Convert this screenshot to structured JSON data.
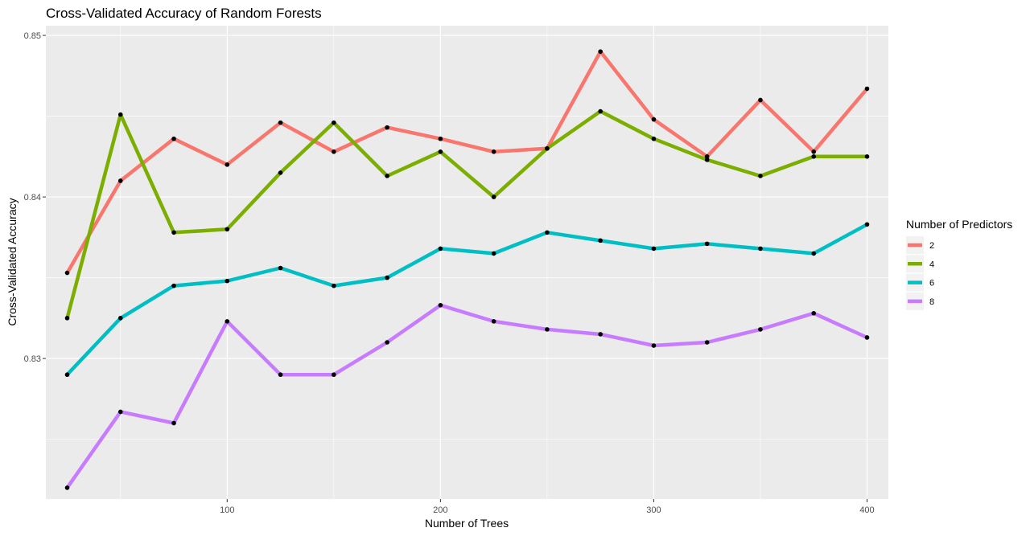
{
  "chart_data": {
    "type": "line",
    "title": "Cross-Validated Accuracy of Random Forests",
    "xlabel": "Number of Trees",
    "ylabel": "Cross-Validated Accuracy",
    "xlim": [
      15,
      410
    ],
    "ylim": [
      0.8213,
      0.8506
    ],
    "x_ticks": [
      100,
      200,
      300,
      400
    ],
    "y_ticks": [
      0.83,
      0.84,
      0.85
    ],
    "x_tick_labels": [
      "100",
      "200",
      "300",
      "400"
    ],
    "y_tick_labels": [
      "0.83",
      "0.84",
      "0.85"
    ],
    "x": [
      25,
      50,
      75,
      100,
      125,
      150,
      175,
      200,
      225,
      250,
      275,
      300,
      325,
      350,
      375,
      400
    ],
    "grid": true,
    "legend": {
      "title": "Number of Predictors",
      "position": "right"
    },
    "series": [
      {
        "name": "2",
        "color": "#F8766D",
        "values": [
          0.8353,
          0.841,
          0.8436,
          0.842,
          0.8446,
          0.8428,
          0.8443,
          0.8436,
          0.8428,
          0.843,
          0.849,
          0.8448,
          0.8425,
          0.846,
          0.8428,
          0.8467
        ]
      },
      {
        "name": "4",
        "color": "#7CAE00",
        "values": [
          0.8325,
          0.8451,
          0.8378,
          0.838,
          0.8415,
          0.8446,
          0.8413,
          0.8428,
          0.84,
          0.843,
          0.8453,
          0.8436,
          0.8423,
          0.8413,
          0.8425,
          0.8425
        ]
      },
      {
        "name": "6",
        "color": "#00BFC4",
        "values": [
          0.829,
          0.8325,
          0.8345,
          0.8348,
          0.8356,
          0.8345,
          0.835,
          0.8368,
          0.8365,
          0.8378,
          0.8373,
          0.8368,
          0.8371,
          0.8368,
          0.8365,
          0.8383
        ]
      },
      {
        "name": "8",
        "color": "#C77CFF",
        "values": [
          0.822,
          0.8267,
          0.826,
          0.8323,
          0.829,
          0.829,
          0.831,
          0.8333,
          0.8323,
          0.8318,
          0.8315,
          0.8308,
          0.831,
          0.8318,
          0.8328,
          0.8313
        ]
      }
    ]
  }
}
